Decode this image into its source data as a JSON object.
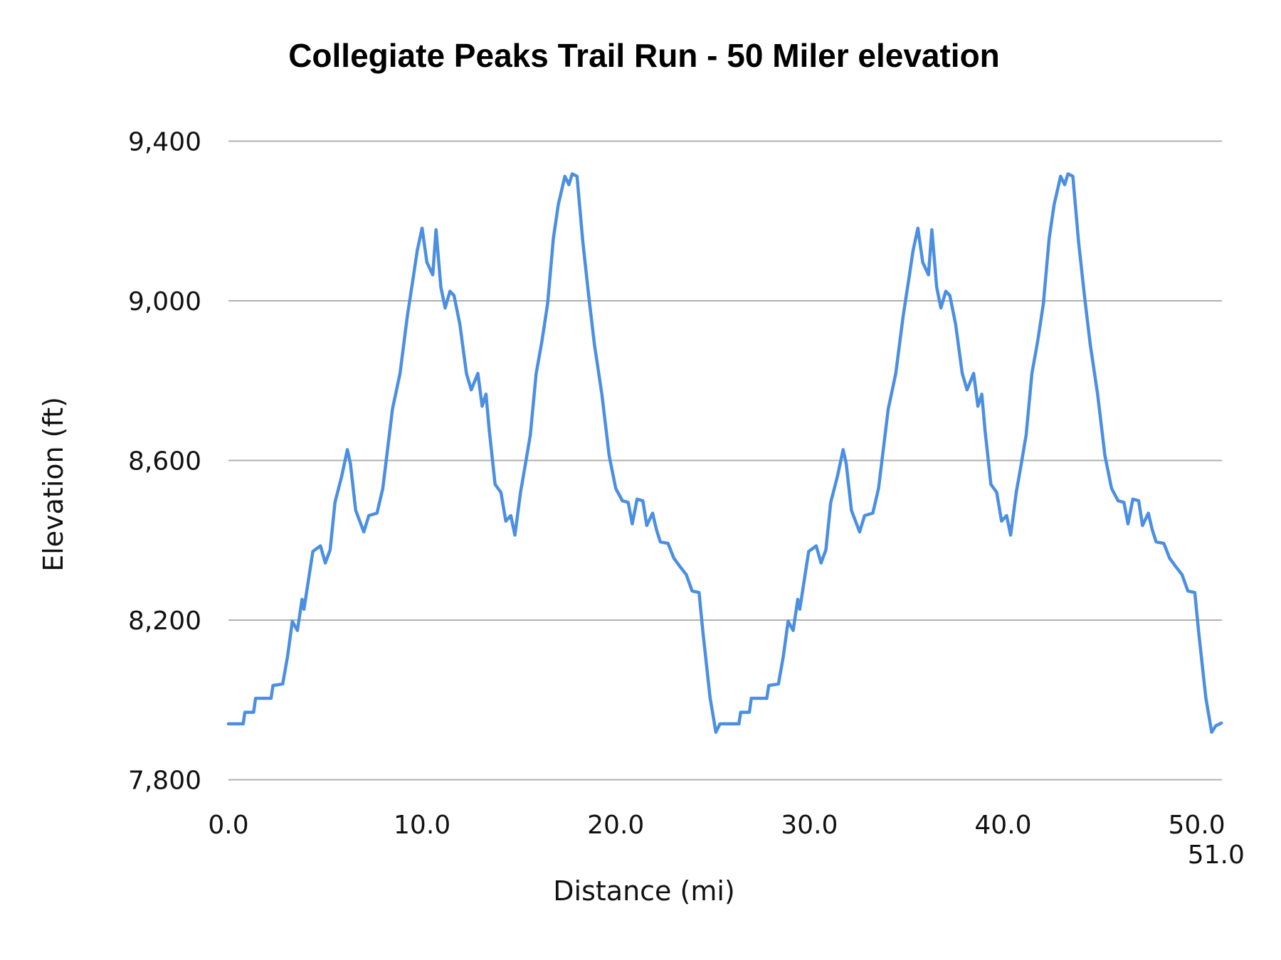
{
  "chart_data": {
    "type": "line",
    "title": "Collegiate Peaks Trail Run - 50 Miler elevation",
    "xlabel": "Distance (mi)",
    "ylabel": "Elevation (ft)",
    "xlim": [
      0,
      51.3
    ],
    "ylim": [
      7800,
      9400
    ],
    "x_ticks": [
      0,
      10,
      20,
      30,
      40,
      50,
      51
    ],
    "x_tick_labels": [
      "0.0",
      "10.0",
      "20.0",
      "30.0",
      "40.0",
      "50.0",
      "51.0"
    ],
    "y_ticks": [
      7800,
      8200,
      8600,
      9000,
      9400
    ],
    "y_tick_labels": [
      "7,800",
      "8,200",
      "8,600",
      "9,000",
      "9,400"
    ],
    "grid": "horizontal",
    "legend": "none",
    "line_color": "#4a8fe2",
    "points": [
      [
        0,
        7940
      ],
      [
        0.76,
        7940
      ],
      [
        0.85,
        7969
      ],
      [
        1.3,
        7969
      ],
      [
        1.4,
        8004
      ],
      [
        2.2,
        8004
      ],
      [
        2.3,
        8036
      ],
      [
        2.8,
        8040
      ],
      [
        3.05,
        8108
      ],
      [
        3.3,
        8197
      ],
      [
        3.56,
        8174
      ],
      [
        3.8,
        8252
      ],
      [
        3.9,
        8227
      ],
      [
        4.36,
        8372
      ],
      [
        4.75,
        8386
      ],
      [
        5.0,
        8343
      ],
      [
        5.25,
        8376
      ],
      [
        5.5,
        8495
      ],
      [
        5.85,
        8561
      ],
      [
        6.14,
        8627
      ],
      [
        6.3,
        8592
      ],
      [
        6.57,
        8475
      ],
      [
        6.99,
        8421
      ],
      [
        7.25,
        8462
      ],
      [
        7.67,
        8468
      ],
      [
        7.97,
        8530
      ],
      [
        8.47,
        8729
      ],
      [
        8.86,
        8818
      ],
      [
        9.24,
        8962
      ],
      [
        9.53,
        9054
      ],
      [
        9.75,
        9126
      ],
      [
        10.0,
        9182
      ],
      [
        10.25,
        9096
      ],
      [
        10.55,
        9065
      ],
      [
        10.72,
        9178
      ],
      [
        10.97,
        9034
      ],
      [
        11.19,
        8982
      ],
      [
        11.44,
        9024
      ],
      [
        11.65,
        9013
      ],
      [
        11.95,
        8941
      ],
      [
        12.29,
        8818
      ],
      [
        12.54,
        8777
      ],
      [
        12.88,
        8818
      ],
      [
        13.1,
        8736
      ],
      [
        13.3,
        8766
      ],
      [
        13.47,
        8674
      ],
      [
        13.77,
        8540
      ],
      [
        14.07,
        8520
      ],
      [
        14.32,
        8448
      ],
      [
        14.58,
        8462
      ],
      [
        14.79,
        8413
      ],
      [
        15.08,
        8520
      ],
      [
        15.34,
        8592
      ],
      [
        15.59,
        8664
      ],
      [
        15.89,
        8818
      ],
      [
        16.19,
        8900
      ],
      [
        16.48,
        8993
      ],
      [
        16.78,
        9157
      ],
      [
        17.03,
        9240
      ],
      [
        17.37,
        9312
      ],
      [
        17.58,
        9291
      ],
      [
        17.75,
        9318
      ],
      [
        18.0,
        9312
      ],
      [
        18.3,
        9147
      ],
      [
        18.6,
        9013
      ],
      [
        18.9,
        8890
      ],
      [
        19.28,
        8766
      ],
      [
        19.66,
        8612
      ],
      [
        20.0,
        8530
      ],
      [
        20.34,
        8499
      ],
      [
        20.64,
        8495
      ],
      [
        20.85,
        8441
      ],
      [
        21.1,
        8503
      ],
      [
        21.4,
        8499
      ],
      [
        21.6,
        8437
      ],
      [
        21.9,
        8468
      ],
      [
        22.1,
        8427
      ],
      [
        22.3,
        8396
      ],
      [
        22.7,
        8392
      ],
      [
        23.0,
        8355
      ],
      [
        23.3,
        8335
      ],
      [
        23.64,
        8314
      ],
      [
        23.94,
        8273
      ],
      [
        24.3,
        8269
      ],
      [
        24.5,
        8170
      ],
      [
        24.87,
        8005
      ],
      [
        25.17,
        7919
      ],
      [
        25.38,
        7940
      ],
      [
        25.6,
        7940
      ],
      [
        26.36,
        7940
      ],
      [
        26.45,
        7969
      ],
      [
        26.9,
        7969
      ],
      [
        27.0,
        8004
      ],
      [
        27.8,
        8004
      ],
      [
        27.9,
        8036
      ],
      [
        28.4,
        8040
      ],
      [
        28.65,
        8108
      ],
      [
        28.9,
        8197
      ],
      [
        29.16,
        8174
      ],
      [
        29.4,
        8252
      ],
      [
        29.5,
        8227
      ],
      [
        29.96,
        8372
      ],
      [
        30.35,
        8386
      ],
      [
        30.6,
        8343
      ],
      [
        30.85,
        8376
      ],
      [
        31.1,
        8495
      ],
      [
        31.45,
        8561
      ],
      [
        31.74,
        8627
      ],
      [
        31.9,
        8592
      ],
      [
        32.17,
        8475
      ],
      [
        32.59,
        8421
      ],
      [
        32.85,
        8462
      ],
      [
        33.27,
        8468
      ],
      [
        33.57,
        8530
      ],
      [
        34.07,
        8729
      ],
      [
        34.46,
        8818
      ],
      [
        34.84,
        8962
      ],
      [
        35.13,
        9054
      ],
      [
        35.35,
        9126
      ],
      [
        35.6,
        9182
      ],
      [
        35.85,
        9096
      ],
      [
        36.15,
        9065
      ],
      [
        36.32,
        9178
      ],
      [
        36.57,
        9034
      ],
      [
        36.79,
        8982
      ],
      [
        37.04,
        9024
      ],
      [
        37.25,
        9013
      ],
      [
        37.55,
        8941
      ],
      [
        37.89,
        8818
      ],
      [
        38.14,
        8777
      ],
      [
        38.48,
        8818
      ],
      [
        38.7,
        8736
      ],
      [
        38.9,
        8766
      ],
      [
        39.07,
        8674
      ],
      [
        39.37,
        8540
      ],
      [
        39.67,
        8520
      ],
      [
        39.92,
        8448
      ],
      [
        40.18,
        8462
      ],
      [
        40.39,
        8413
      ],
      [
        40.68,
        8520
      ],
      [
        40.94,
        8592
      ],
      [
        41.19,
        8664
      ],
      [
        41.49,
        8818
      ],
      [
        41.79,
        8900
      ],
      [
        42.08,
        8993
      ],
      [
        42.38,
        9157
      ],
      [
        42.63,
        9240
      ],
      [
        42.97,
        9312
      ],
      [
        43.18,
        9291
      ],
      [
        43.35,
        9318
      ],
      [
        43.6,
        9312
      ],
      [
        43.9,
        9147
      ],
      [
        44.2,
        9013
      ],
      [
        44.5,
        8890
      ],
      [
        44.88,
        8766
      ],
      [
        45.26,
        8612
      ],
      [
        45.6,
        8530
      ],
      [
        45.94,
        8499
      ],
      [
        46.24,
        8495
      ],
      [
        46.45,
        8441
      ],
      [
        46.7,
        8503
      ],
      [
        47.0,
        8499
      ],
      [
        47.2,
        8437
      ],
      [
        47.5,
        8468
      ],
      [
        47.7,
        8427
      ],
      [
        47.9,
        8396
      ],
      [
        48.3,
        8392
      ],
      [
        48.6,
        8355
      ],
      [
        48.9,
        8335
      ],
      [
        49.24,
        8314
      ],
      [
        49.54,
        8273
      ],
      [
        49.9,
        8269
      ],
      [
        50.1,
        8170
      ],
      [
        50.47,
        8005
      ],
      [
        50.77,
        7919
      ],
      [
        50.98,
        7935
      ],
      [
        51.27,
        7942
      ]
    ]
  }
}
